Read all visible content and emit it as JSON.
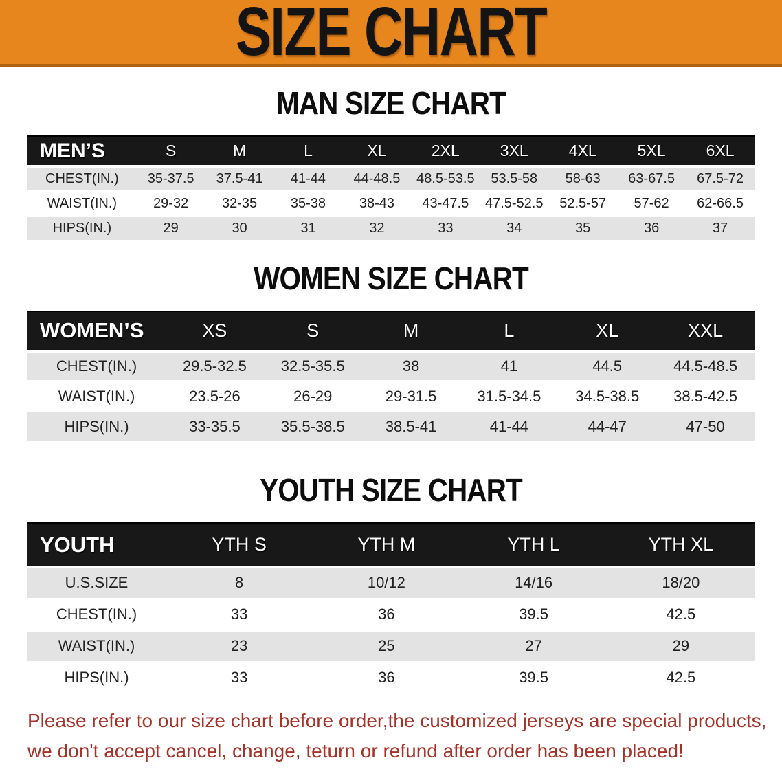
{
  "banner": {
    "title": "SIZE CHART",
    "bg_color": "#E8861E",
    "text_color": "#141414"
  },
  "colors": {
    "header_bar": "#181818",
    "row_stripe_gray": "#E3E3E3",
    "disclaimer_red": "#A63228"
  },
  "sections": [
    {
      "heading": "MAN SIZE CHART",
      "table": {
        "label": "MEN’S",
        "columns": [
          "S",
          "M",
          "L",
          "XL",
          "2XL",
          "3XL",
          "4XL",
          "5XL",
          "6XL"
        ],
        "rows": [
          {
            "label": "CHEST(IN.)",
            "values": [
              "35-37.5",
              "37.5-41",
              "41-44",
              "44-48.5",
              "48.5-53.5",
              "53.5-58",
              "58-63",
              "63-67.5",
              "67.5-72"
            ]
          },
          {
            "label": "WAIST(IN.)",
            "values": [
              "29-32",
              "32-35",
              "35-38",
              "38-43",
              "43-47.5",
              "47.5-52.5",
              "52.5-57",
              "57-62",
              "62-66.5"
            ]
          },
          {
            "label": "HIPS(IN.)",
            "values": [
              "29",
              "30",
              "31",
              "32",
              "33",
              "34",
              "35",
              "36",
              "37"
            ]
          }
        ]
      }
    },
    {
      "heading": "WOMEN SIZE CHART",
      "table": {
        "label": "WOMEN’S",
        "columns": [
          "XS",
          "S",
          "M",
          "L",
          "XL",
          "XXL"
        ],
        "rows": [
          {
            "label": "CHEST(IN.)",
            "values": [
              "29.5-32.5",
              "32.5-35.5",
              "38",
              "41",
              "44.5",
              "44.5-48.5"
            ]
          },
          {
            "label": "WAIST(IN.)",
            "values": [
              "23.5-26",
              "26-29",
              "29-31.5",
              "31.5-34.5",
              "34.5-38.5",
              "38.5-42.5"
            ]
          },
          {
            "label": "HIPS(IN.)",
            "values": [
              "33-35.5",
              "35.5-38.5",
              "38.5-41",
              "41-44",
              "44-47",
              "47-50"
            ]
          }
        ]
      }
    },
    {
      "heading": "YOUTH SIZE CHART",
      "table": {
        "label": "YOUTH",
        "columns": [
          "YTH S",
          "YTH M",
          "YTH L",
          "YTH XL"
        ],
        "rows": [
          {
            "label": "U.S.SIZE",
            "values": [
              "8",
              "10/12",
              "14/16",
              "18/20"
            ]
          },
          {
            "label": "CHEST(IN.)",
            "values": [
              "33",
              "36",
              "39.5",
              "42.5"
            ]
          },
          {
            "label": "WAIST(IN.)",
            "values": [
              "23",
              "25",
              "27",
              "29"
            ]
          },
          {
            "label": "HIPS(IN.)",
            "values": [
              "33",
              "36",
              "39.5",
              "42.5"
            ]
          }
        ]
      }
    }
  ],
  "disclaimer": {
    "line1": "Please refer to our size chart before order,the customized jerseys are special products,",
    "line2": "we don't accept cancel, change, teturn or refund after order has been placed!"
  }
}
